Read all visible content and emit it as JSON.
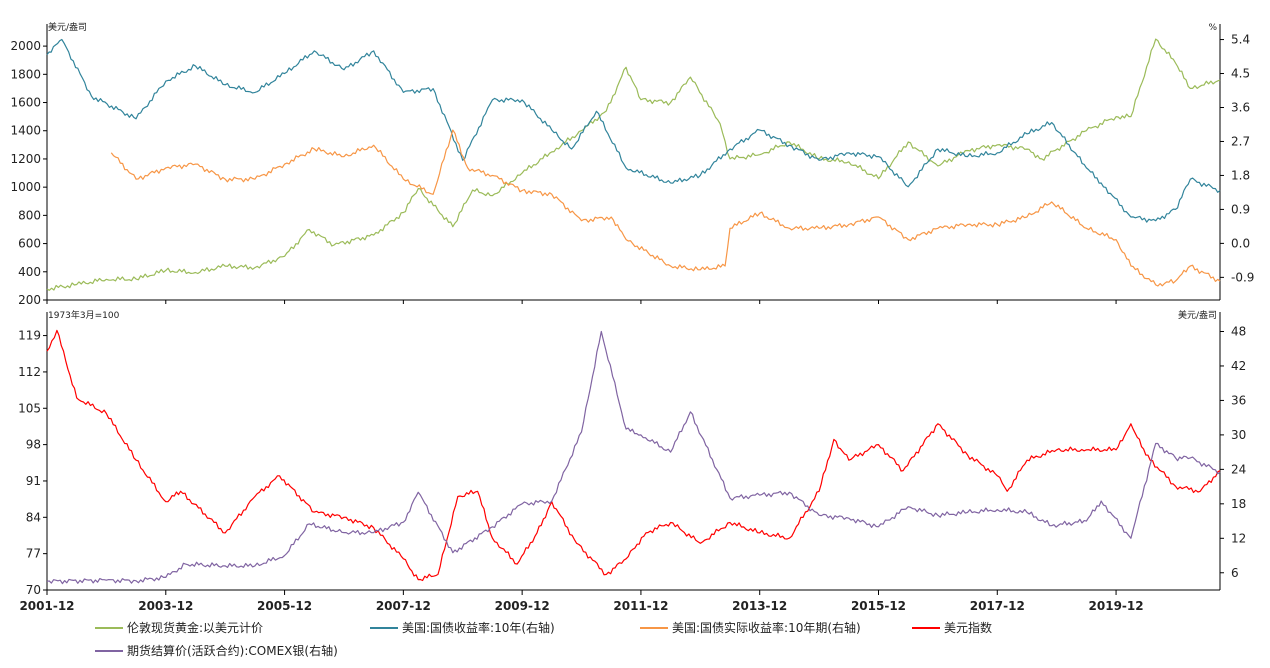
{
  "chart_data": [
    {
      "type": "line",
      "panel": "top",
      "left_axis_unit": "美元/盎司",
      "right_axis_unit": "%",
      "x_range": [
        "2001-12",
        "2021-09"
      ],
      "x_ticks": [
        "2001-12",
        "2003-12",
        "2005-12",
        "2007-12",
        "2009-12",
        "2011-12",
        "2013-12",
        "2015-12",
        "2017-12",
        "2019-12"
      ],
      "y_left_ticks": [
        200,
        400,
        600,
        800,
        1000,
        1200,
        1400,
        1600,
        1800,
        2000
      ],
      "y_left_range": [
        200,
        2100
      ],
      "y_right_ticks": [
        -0.9,
        0.0,
        0.9,
        1.8,
        2.7,
        3.6,
        4.5,
        5.4
      ],
      "y_right_range": [
        -1.5,
        5.6
      ],
      "series": [
        {
          "name": "伦敦现货黄金:以美元计价",
          "axis": "left",
          "color": "#9bbb59",
          "x": [
            "2001-12",
            "2002-06",
            "2002-12",
            "2003-06",
            "2003-12",
            "2004-06",
            "2004-12",
            "2005-06",
            "2005-12",
            "2006-05",
            "2006-10",
            "2007-06",
            "2007-12",
            "2008-03",
            "2008-10",
            "2009-02",
            "2009-06",
            "2009-12",
            "2010-06",
            "2010-12",
            "2011-05",
            "2011-09",
            "2011-12",
            "2012-06",
            "2012-10",
            "2013-04",
            "2013-06",
            "2013-12",
            "2014-06",
            "2014-12",
            "2015-06",
            "2015-12",
            "2016-06",
            "2016-12",
            "2017-06",
            "2017-12",
            "2018-06",
            "2018-09",
            "2019-06",
            "2019-12",
            "2020-03",
            "2020-08",
            "2020-12",
            "2021-03",
            "2021-09"
          ],
          "values": [
            278,
            310,
            347,
            348,
            410,
            395,
            440,
            430,
            510,
            700,
            590,
            660,
            820,
            990,
            720,
            980,
            940,
            1100,
            1250,
            1400,
            1540,
            1850,
            1620,
            1600,
            1780,
            1450,
            1200,
            1230,
            1320,
            1200,
            1180,
            1060,
            1320,
            1150,
            1260,
            1300,
            1270,
            1200,
            1400,
            1500,
            1500,
            2050,
            1880,
            1700,
            1760
          ]
        },
        {
          "name": "美国:国债收益率:10年(右轴)",
          "axis": "right",
          "color": "#31849b",
          "x": [
            "2001-12",
            "2002-03",
            "2002-09",
            "2003-06",
            "2003-12",
            "2004-06",
            "2004-12",
            "2005-06",
            "2005-12",
            "2006-06",
            "2006-12",
            "2007-06",
            "2007-12",
            "2008-06",
            "2008-12",
            "2009-06",
            "2009-12",
            "2010-06",
            "2010-10",
            "2011-03",
            "2011-09",
            "2012-06",
            "2012-12",
            "2013-06",
            "2013-12",
            "2014-06",
            "2014-12",
            "2015-06",
            "2015-12",
            "2016-06",
            "2016-12",
            "2017-06",
            "2017-12",
            "2018-06",
            "2018-11",
            "2019-06",
            "2019-09",
            "2020-03",
            "2020-08",
            "2020-12",
            "2021-03",
            "2021-09"
          ],
          "values": [
            5.0,
            5.4,
            3.9,
            3.3,
            4.3,
            4.7,
            4.2,
            4.0,
            4.5,
            5.1,
            4.6,
            5.1,
            4.0,
            4.1,
            2.2,
            3.8,
            3.8,
            3.0,
            2.5,
            3.5,
            2.0,
            1.6,
            1.8,
            2.5,
            3.0,
            2.6,
            2.2,
            2.4,
            2.3,
            1.5,
            2.5,
            2.3,
            2.4,
            2.9,
            3.2,
            2.0,
            1.6,
            0.7,
            0.6,
            0.9,
            1.7,
            1.4
          ]
        },
        {
          "name": "美国:国债实际收益率:10年期(右轴)",
          "axis": "right",
          "color": "#f79646",
          "x": [
            "2003-01",
            "2003-06",
            "2003-12",
            "2004-06",
            "2004-12",
            "2005-06",
            "2005-12",
            "2006-06",
            "2006-12",
            "2007-06",
            "2007-12",
            "2008-06",
            "2008-10",
            "2009-01",
            "2009-06",
            "2009-12",
            "2010-06",
            "2010-12",
            "2011-06",
            "2011-09",
            "2012-06",
            "2012-12",
            "2013-05",
            "2013-06",
            "2013-12",
            "2014-06",
            "2014-12",
            "2015-06",
            "2015-12",
            "2016-06",
            "2016-12",
            "2017-06",
            "2017-12",
            "2018-06",
            "2018-11",
            "2019-06",
            "2019-12",
            "2020-03",
            "2020-08",
            "2020-12",
            "2021-03",
            "2021-09"
          ],
          "values": [
            2.4,
            1.7,
            2.0,
            2.1,
            1.7,
            1.7,
            2.1,
            2.5,
            2.3,
            2.6,
            1.7,
            1.3,
            3.0,
            2.0,
            1.8,
            1.4,
            1.3,
            0.6,
            0.7,
            0.1,
            -0.6,
            -0.7,
            -0.6,
            0.4,
            0.8,
            0.4,
            0.4,
            0.5,
            0.7,
            0.1,
            0.4,
            0.5,
            0.5,
            0.7,
            1.1,
            0.4,
            0.1,
            -0.6,
            -1.1,
            -1.0,
            -0.6,
            -1.0
          ]
        }
      ]
    },
    {
      "type": "line",
      "panel": "bottom",
      "left_axis_unit": "1973年3月=100",
      "right_axis_unit": "美元/盎司",
      "x_range": [
        "2001-12",
        "2021-09"
      ],
      "x_ticks": [
        "2001-12",
        "2003-12",
        "2005-12",
        "2007-12",
        "2009-12",
        "2011-12",
        "2013-12",
        "2015-12",
        "2017-12",
        "2019-12"
      ],
      "y_left_ticks": [
        70,
        77,
        84,
        91,
        98,
        105,
        112,
        119
      ],
      "y_left_range": [
        70,
        122
      ],
      "y_right_ticks": [
        6,
        12,
        18,
        24,
        30,
        36,
        42,
        48
      ],
      "y_right_range": [
        3,
        50
      ],
      "series": [
        {
          "name": "美元指数",
          "axis": "left",
          "color": "#ff0000",
          "x": [
            "2001-12",
            "2002-02",
            "2002-06",
            "2002-12",
            "2003-06",
            "2003-12",
            "2004-03",
            "2004-12",
            "2005-06",
            "2005-11",
            "2006-06",
            "2006-12",
            "2007-06",
            "2007-12",
            "2008-03",
            "2008-07",
            "2008-11",
            "2009-03",
            "2009-06",
            "2009-11",
            "2010-03",
            "2010-06",
            "2010-11",
            "2011-05",
            "2011-09",
            "2012-01",
            "2012-06",
            "2012-12",
            "2013-06",
            "2013-12",
            "2014-06",
            "2014-12",
            "2015-03",
            "2015-06",
            "2015-12",
            "2016-05",
            "2016-12",
            "2017-06",
            "2017-12",
            "2018-02",
            "2018-06",
            "2018-12",
            "2019-06",
            "2019-12",
            "2020-03",
            "2020-06",
            "2020-12",
            "2021-05",
            "2021-09"
          ],
          "values": [
            116,
            120,
            107,
            104,
            95,
            87,
            89,
            81,
            88,
            92,
            85,
            84,
            82,
            76,
            72,
            73,
            88,
            89,
            80,
            75,
            81,
            87,
            79,
            73,
            76,
            81,
            83,
            79,
            83,
            81,
            80,
            89,
            99,
            95,
            98,
            93,
            102,
            96,
            92,
            89,
            95,
            97,
            97,
            97,
            102,
            96,
            90,
            89,
            93
          ]
        },
        {
          "name": "期货结算价(活跃合约):COMEX银(右轴)",
          "axis": "right",
          "color": "#8064a2",
          "x": [
            "2001-12",
            "2002-12",
            "2003-06",
            "2003-12",
            "2004-04",
            "2004-12",
            "2005-06",
            "2005-12",
            "2006-05",
            "2006-12",
            "2007-06",
            "2007-12",
            "2008-03",
            "2008-10",
            "2009-06",
            "2009-12",
            "2010-06",
            "2010-12",
            "2011-04",
            "2011-09",
            "2011-12",
            "2012-06",
            "2012-10",
            "2013-06",
            "2013-12",
            "2014-06",
            "2014-12",
            "2015-06",
            "2015-12",
            "2016-06",
            "2016-12",
            "2017-06",
            "2017-12",
            "2018-06",
            "2018-11",
            "2019-06",
            "2019-09",
            "2020-03",
            "2020-08",
            "2020-12",
            "2021-03",
            "2021-09"
          ],
          "values": [
            4.5,
            4.7,
            4.6,
            5.2,
            7.5,
            7.2,
            7.2,
            9.0,
            14.5,
            13.0,
            13.0,
            14.8,
            20.0,
            9.5,
            14.0,
            18.0,
            18.5,
            30.5,
            48.0,
            31.0,
            30.0,
            27.0,
            34.0,
            19.0,
            19.5,
            20.0,
            16.0,
            15.5,
            14.0,
            17.5,
            16.0,
            16.5,
            17.0,
            16.5,
            14.2,
            15.0,
            18.5,
            12.0,
            28.5,
            26.0,
            26.0,
            23.5
          ]
        }
      ]
    }
  ],
  "legend": [
    {
      "label": "伦敦现货黄金:以美元计价",
      "color": "#9bbb59"
    },
    {
      "label": "美国:国债收益率:10年(右轴)",
      "color": "#31849b"
    },
    {
      "label": "美国:国债实际收益率:10年期(右轴)",
      "color": "#f79646"
    },
    {
      "label": "美元指数",
      "color": "#ff0000"
    },
    {
      "label": "期货结算价(活跃合约):COMEX银(右轴)",
      "color": "#8064a2"
    }
  ]
}
